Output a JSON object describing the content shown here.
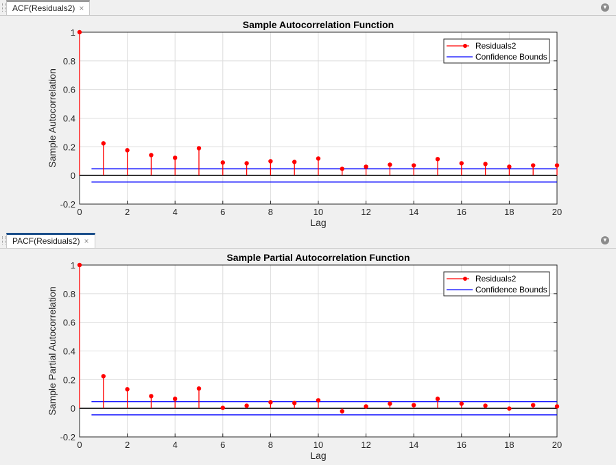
{
  "tabs": [
    {
      "label": "ACF(Residuals2)",
      "close": "×",
      "active": false
    },
    {
      "label": "PACF(Residuals2)",
      "close": "×",
      "active": true
    }
  ],
  "menu_icon": "▼",
  "colors": {
    "stem": "#ff0000",
    "bounds": "#0000ff",
    "zero": "#000000",
    "grid": "#dcdcdc"
  },
  "chart_data": [
    {
      "type": "stem",
      "title": "Sample Autocorrelation Function",
      "xlabel": "Lag",
      "ylabel": "Sample Autocorrelation",
      "xlim": [
        0,
        20
      ],
      "ylim": [
        -0.2,
        1
      ],
      "xticks": [
        0,
        2,
        4,
        6,
        8,
        10,
        12,
        14,
        16,
        18,
        20
      ],
      "yticks": [
        -0.2,
        0,
        0.2,
        0.4,
        0.6,
        0.8,
        1
      ],
      "yticklabels": [
        "-0.2",
        "0",
        "0.2",
        "0.4",
        "0.6",
        "0.8",
        "1"
      ],
      "grid": true,
      "legend_position": "top-right",
      "legend": [
        "Residuals2",
        "Confidence Bounds"
      ],
      "series": [
        {
          "name": "Residuals2",
          "x": [
            0,
            1,
            2,
            3,
            4,
            5,
            6,
            7,
            8,
            9,
            10,
            11,
            12,
            13,
            14,
            15,
            16,
            17,
            18,
            19,
            20
          ],
          "values": [
            1,
            0.224,
            0.176,
            0.142,
            0.123,
            0.19,
            0.09,
            0.085,
            0.099,
            0.094,
            0.118,
            0.046,
            0.061,
            0.075,
            0.07,
            0.114,
            0.085,
            0.08,
            0.061,
            0.07,
            0.07
          ]
        }
      ],
      "confidence_bounds": [
        -0.046,
        0.046
      ],
      "bounds_x": [
        0.5,
        20
      ]
    },
    {
      "type": "stem",
      "title": "Sample Partial Autocorrelation Function",
      "xlabel": "Lag",
      "ylabel": "Sample Partial Autocorrelation",
      "xlim": [
        0,
        20
      ],
      "ylim": [
        -0.2,
        1
      ],
      "xticks": [
        0,
        2,
        4,
        6,
        8,
        10,
        12,
        14,
        16,
        18,
        20
      ],
      "yticks": [
        -0.2,
        0,
        0.2,
        0.4,
        0.6,
        0.8,
        1
      ],
      "yticklabels": [
        "-0.2",
        "0",
        "0.2",
        "0.4",
        "0.6",
        "0.8",
        "1"
      ],
      "grid": true,
      "legend_position": "top-right",
      "legend": [
        "Residuals2",
        "Confidence Bounds"
      ],
      "series": [
        {
          "name": "Residuals2",
          "x": [
            0,
            1,
            2,
            3,
            4,
            5,
            6,
            7,
            8,
            9,
            10,
            11,
            12,
            13,
            14,
            15,
            16,
            17,
            18,
            19,
            20
          ],
          "values": [
            1,
            0.224,
            0.133,
            0.085,
            0.066,
            0.138,
            0.003,
            0.018,
            0.042,
            0.037,
            0.056,
            -0.021,
            0.013,
            0.032,
            0.022,
            0.066,
            0.032,
            0.018,
            -0.002,
            0.022,
            0.013
          ]
        }
      ],
      "confidence_bounds": [
        -0.046,
        0.046
      ],
      "bounds_x": [
        0.5,
        20
      ]
    }
  ]
}
